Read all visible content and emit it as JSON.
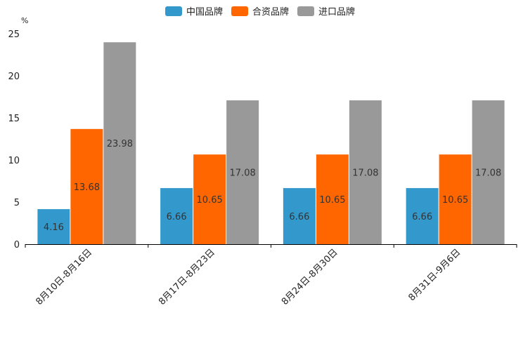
{
  "chart_data": {
    "type": "bar",
    "y_unit": "%",
    "ylim": [
      0,
      25
    ],
    "yticks": [
      0,
      5,
      10,
      15,
      20,
      25
    ],
    "grid": false,
    "legend_position": "top-center",
    "categories": [
      "8月10日-8月16日",
      "8月17日-8月23日",
      "8月24日-8月30日",
      "8月31日-9月6日"
    ],
    "series": [
      {
        "name": "中国品牌",
        "color": "#3399cc",
        "values": [
          4.16,
          6.66,
          6.66,
          6.66
        ],
        "labels": [
          "4.16",
          "6.66",
          "6.66",
          "6.66"
        ]
      },
      {
        "name": "合资品牌",
        "color": "#ff6600",
        "values": [
          13.68,
          10.65,
          10.65,
          10.65
        ],
        "labels": [
          "13.68",
          "10.65",
          "10.65",
          "10.65"
        ]
      },
      {
        "name": "进口品牌",
        "color": "#999999",
        "values": [
          23.98,
          17.08,
          17.08,
          17.08
        ],
        "labels": [
          "23.98",
          "17.08",
          "17.08",
          "17.08"
        ]
      }
    ]
  }
}
